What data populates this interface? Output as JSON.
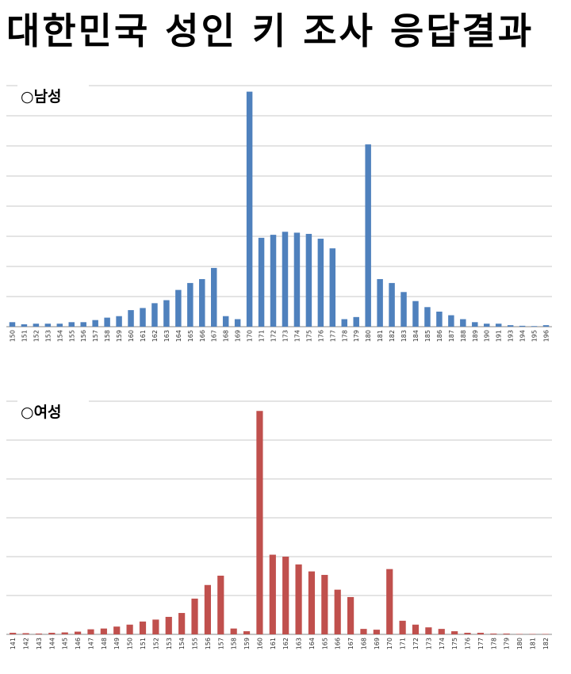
{
  "title": "대한민국 성인 키 조사 응답결과",
  "chart_data": [
    {
      "type": "bar",
      "title": "○남성",
      "color": "#4F81BD",
      "grid": true,
      "ylim": [
        0,
        8
      ],
      "categories": [
        "150",
        "151",
        "152",
        "153",
        "154",
        "155",
        "156",
        "157",
        "158",
        "159",
        "160",
        "161",
        "162",
        "163",
        "164",
        "165",
        "166",
        "167",
        "168",
        "169",
        "170",
        "171",
        "172",
        "173",
        "174",
        "175",
        "176",
        "177",
        "178",
        "179",
        "180",
        "181",
        "182",
        "183",
        "184",
        "185",
        "186",
        "187",
        "188",
        "189",
        "190",
        "191",
        "193",
        "194",
        "195",
        "196"
      ],
      "values": [
        0.15,
        0.08,
        0.1,
        0.1,
        0.1,
        0.15,
        0.15,
        0.22,
        0.3,
        0.35,
        0.55,
        0.62,
        0.78,
        0.88,
        1.22,
        1.45,
        1.58,
        1.95,
        0.35,
        0.25,
        7.8,
        2.95,
        3.05,
        3.15,
        3.12,
        3.08,
        2.92,
        2.6,
        0.25,
        0.32,
        6.05,
        1.58,
        1.45,
        1.15,
        0.85,
        0.65,
        0.5,
        0.38,
        0.25,
        0.15,
        0.1,
        0.1,
        0.05,
        0.03,
        0.02,
        0.05
      ]
    },
    {
      "type": "bar",
      "title": "○여성",
      "color": "#C0504D",
      "grid": true,
      "ylim": [
        0,
        6
      ],
      "categories": [
        "141",
        "142",
        "143",
        "144",
        "145",
        "146",
        "147",
        "148",
        "149",
        "150",
        "151",
        "152",
        "153",
        "154",
        "155",
        "156",
        "157",
        "158",
        "159",
        "160",
        "161",
        "162",
        "163",
        "164",
        "165",
        "166",
        "167",
        "168",
        "169",
        "170",
        "171",
        "172",
        "173",
        "174",
        "175",
        "176",
        "177",
        "178",
        "179",
        "180",
        "181",
        "182"
      ],
      "values": [
        0.04,
        0.03,
        0.02,
        0.04,
        0.05,
        0.07,
        0.13,
        0.15,
        0.2,
        0.25,
        0.33,
        0.38,
        0.45,
        0.55,
        0.92,
        1.27,
        1.51,
        0.15,
        0.08,
        5.75,
        2.05,
        2.0,
        1.8,
        1.62,
        1.53,
        1.15,
        0.96,
        0.14,
        0.12,
        1.68,
        0.35,
        0.25,
        0.18,
        0.14,
        0.08,
        0.04,
        0.04,
        0.02,
        0.02,
        0.01,
        0.01,
        0.01
      ]
    }
  ]
}
